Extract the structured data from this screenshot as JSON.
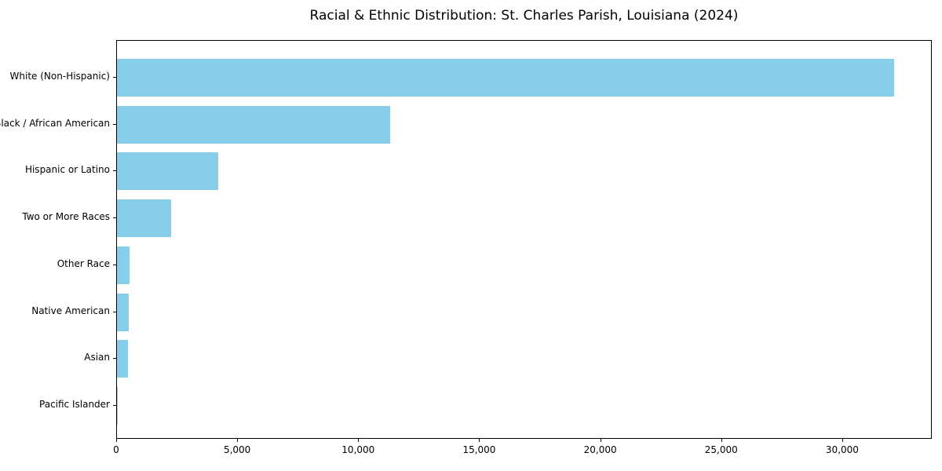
{
  "chart_data": {
    "type": "bar",
    "orientation": "horizontal",
    "title": "Racial & Ethnic Distribution: St. Charles Parish, Louisiana (2024)",
    "categories": [
      "White (Non-Hispanic)",
      "Black / African American",
      "Hispanic or Latino",
      "Two or More Races",
      "Other Race",
      "Native American",
      "Asian",
      "Pacific Islander"
    ],
    "values": [
      32100,
      11300,
      4200,
      2250,
      520,
      500,
      460,
      20
    ],
    "xlabel": "",
    "ylabel": "",
    "xlim": [
      0,
      33700
    ],
    "xticks": [
      0,
      5000,
      10000,
      15000,
      20000,
      25000,
      30000
    ],
    "xtick_labels": [
      "0",
      "5,000",
      "10,000",
      "15,000",
      "20,000",
      "25,000",
      "30,000"
    ],
    "bar_color": "#87CEEB",
    "frame_color": "#000000",
    "background_color": "#FFFFFF",
    "grid": false,
    "legend": null
  }
}
